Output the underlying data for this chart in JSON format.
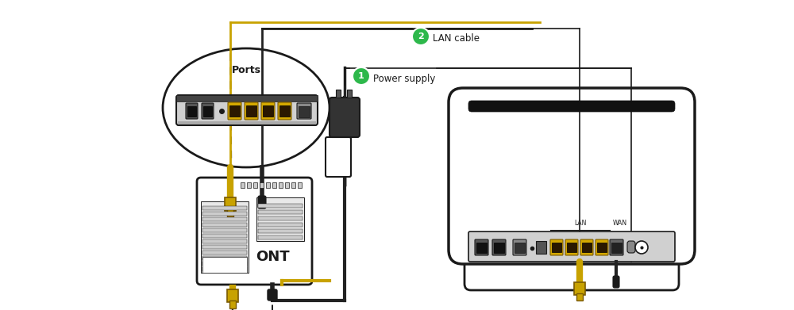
{
  "bg_color": "#ffffff",
  "lc": "#1a1a1a",
  "ont_label": "ONT",
  "ports_label": "Ports",
  "label1": "Power supply",
  "label2": "LAN cable",
  "golden": "#c8a200",
  "green": "#2db84b",
  "yellow_port": "#d4a800",
  "dark": "#222222",
  "gray1": "#888888",
  "gray2": "#d0d0d0",
  "gray3": "#555555",
  "gray4": "#cccccc",
  "gray5": "#e8e8e8",
  "gray6": "#aaaaaa"
}
